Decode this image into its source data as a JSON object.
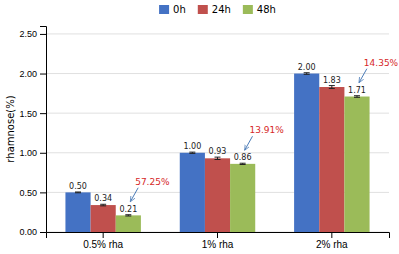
{
  "chart_data": {
    "type": "bar",
    "ylabel": "rhamnose(%)",
    "categories": [
      "0.5% rha",
      "1% rha",
      "2% rha"
    ],
    "series": [
      {
        "name": "0h",
        "color": "#4472C4",
        "values": [
          0.5,
          1.0,
          2.0
        ],
        "errors": [
          0.005,
          0.008,
          0.01
        ],
        "value_labels": [
          "0.50",
          "1.00",
          "2.00"
        ]
      },
      {
        "name": "24h",
        "color": "#C0504D",
        "values": [
          0.34,
          0.93,
          1.83
        ],
        "errors": [
          0.01,
          0.015,
          0.018
        ],
        "value_labels": [
          "0.34",
          "0.93",
          "1.83"
        ]
      },
      {
        "name": "48h",
        "color": "#9BBB59",
        "values": [
          0.21,
          0.86,
          1.71
        ],
        "errors": [
          0.008,
          0.008,
          0.01
        ],
        "value_labels": [
          "0.21",
          "0.86",
          "1.71"
        ]
      }
    ],
    "ylim": [
      0,
      2.6
    ],
    "yticks": [
      {
        "value": 0,
        "label": "0.00"
      },
      {
        "value": 0.5,
        "label": "0.50"
      },
      {
        "value": 1,
        "label": "1.00"
      },
      {
        "value": 1.5,
        "label": "1.50"
      },
      {
        "value": 2,
        "label": "2.00"
      },
      {
        "value": 2.5,
        "label": "2.50"
      }
    ],
    "grid": true,
    "legend": "top",
    "data_labels": true,
    "annotations": [
      {
        "text": "57.25%",
        "category": "0.5% rha",
        "series": "48h"
      },
      {
        "text": "13.91%",
        "category": "1% rha",
        "series": "48h"
      },
      {
        "text": "14.35%",
        "category": "2% rha",
        "series": "48h"
      }
    ]
  }
}
